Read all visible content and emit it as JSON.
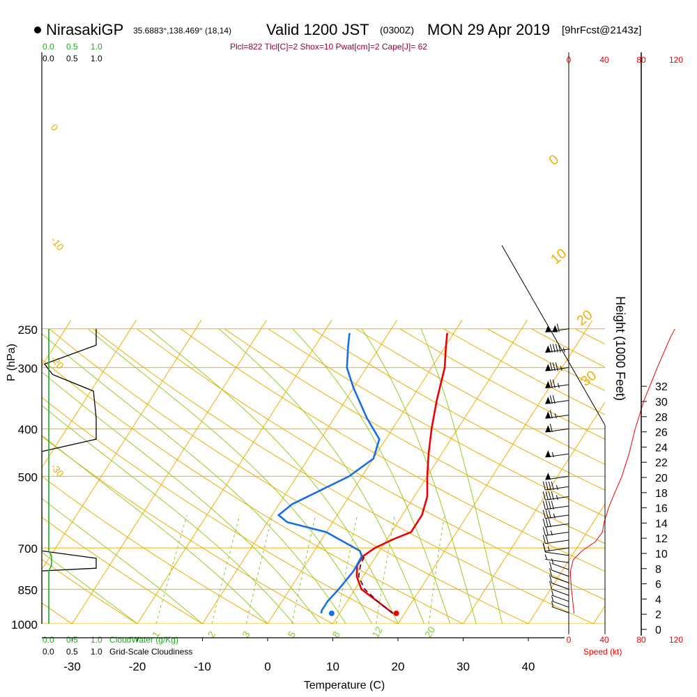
{
  "header": {
    "station": "NirasakiGP",
    "coords": "35.6883°,138.469° (18,14)",
    "valid_prefix": "Valid 1200 JST",
    "valid_utc": "(0300Z)",
    "valid_date": "MON 29 Apr 2019",
    "forecast": "[9hrFcst@2143z]"
  },
  "indices": "Plcl=822 Tlcl[C]=2 Shox=10 Pwat[cm]=2 Cape[J]= 62",
  "left_panel": {
    "cloudwater_ticks": [
      "0.0",
      "0.5",
      "1.0"
    ],
    "cloudiness_ticks": [
      "0.0",
      "0.5",
      "1.0"
    ],
    "cloudwater_label": "CloudWater (g/Kg)",
    "cloudiness_label": "Grid-Scale Cloudiness"
  },
  "speed_axis": {
    "ticks": [
      "0",
      "40",
      "80",
      "120"
    ],
    "label": "Speed (kt)"
  },
  "colors": {
    "isotherm": "#f0b000",
    "dry_adiabat": "#e8b000",
    "moist_adiabat": "#99cc22",
    "mixing_ratio": "#88cc33",
    "temperature": "#ee0000",
    "dewpoint": "#1a6fe0",
    "parcel": "#660033",
    "indices": "#990033",
    "cloudwater": "#22aa22",
    "speed": "#ee0000"
  },
  "chart_data": {
    "type": "line",
    "chart_kind": "skew-T log-p sounding",
    "xlabel": "Temperature (C)",
    "ylabel": "P (hPa)",
    "y2label": "Height (1000 Feet)",
    "x_ticks": [
      -30,
      -20,
      -10,
      0,
      10,
      20,
      30,
      40
    ],
    "p_levels": [
      250,
      300,
      400,
      500,
      700,
      850,
      1000
    ],
    "height_ticks": [
      0,
      2,
      4,
      6,
      8,
      10,
      12,
      14,
      16,
      18,
      20,
      22,
      24,
      26,
      28,
      30,
      32
    ],
    "isotherm_labels": [
      0,
      10,
      20,
      30
    ],
    "dry_adiabat_labels": [
      0,
      -10,
      -20,
      -30
    ],
    "mixing_ratio_labels": [
      1,
      2,
      3,
      5,
      8,
      12,
      20
    ],
    "series": [
      {
        "name": "Temperature",
        "points": [
          [
            18.2,
            952
          ],
          [
            15,
            905
          ],
          [
            11,
            850
          ],
          [
            9,
            800
          ],
          [
            8,
            760
          ],
          [
            8,
            728
          ],
          [
            9,
            700
          ],
          [
            11,
            672
          ],
          [
            13,
            650
          ],
          [
            13,
            600
          ],
          [
            12,
            550
          ],
          [
            10,
            500
          ],
          [
            8,
            450
          ],
          [
            6,
            400
          ],
          [
            4,
            350
          ],
          [
            2,
            300
          ],
          [
            0,
            270
          ],
          [
            -1,
            255
          ]
        ]
      },
      {
        "name": "Dewpoint",
        "points": [
          [
            7.2,
            952
          ],
          [
            7,
            940
          ],
          [
            7,
            900
          ],
          [
            7.5,
            850
          ],
          [
            8,
            780
          ],
          [
            7.8,
            728
          ],
          [
            7,
            710
          ],
          [
            0,
            650
          ],
          [
            -7,
            620
          ],
          [
            -9,
            600
          ],
          [
            -8,
            570
          ],
          [
            -2,
            500
          ],
          [
            0,
            460
          ],
          [
            -1,
            420
          ],
          [
            -5,
            380
          ],
          [
            -10,
            330
          ],
          [
            -13,
            300
          ],
          [
            -15,
            270
          ],
          [
            -16,
            255
          ]
        ]
      },
      {
        "name": "Parcel",
        "points": [
          [
            18.2,
            952
          ],
          [
            15,
            905
          ],
          [
            11.5,
            850
          ],
          [
            9.3,
            800
          ],
          [
            8.5,
            760
          ],
          [
            8.2,
            728
          ]
        ]
      }
    ],
    "surface": {
      "temperature": 18.5,
      "dewpoint": 8.8,
      "pressure": 952
    },
    "cloudwater": [
      [
        0,
        1000
      ],
      [
        0,
        780
      ],
      [
        0.05,
        760
      ],
      [
        0.05,
        728
      ],
      [
        0,
        710
      ],
      [
        0,
        250
      ]
    ],
    "cloudiness": [
      [
        0,
        1000
      ],
      [
        0,
        780
      ],
      [
        1.0,
        770
      ],
      [
        1.0,
        735
      ],
      [
        0,
        710
      ],
      [
        0,
        445
      ],
      [
        1.0,
        420
      ],
      [
        1.0,
        380
      ],
      [
        0.95,
        335
      ],
      [
        0.2,
        310
      ],
      [
        0.1,
        300
      ],
      [
        0.05,
        295
      ],
      [
        1.0,
        270
      ],
      [
        1.0,
        250
      ]
    ],
    "wind_speed_profile": [
      [
        6,
        952
      ],
      [
        5,
        920
      ],
      [
        4,
        880
      ],
      [
        3,
        850
      ],
      [
        2,
        800
      ],
      [
        2,
        780
      ],
      [
        5,
        740
      ],
      [
        15,
        710
      ],
      [
        30,
        680
      ],
      [
        38,
        650
      ],
      [
        40,
        620
      ],
      [
        45,
        580
      ],
      [
        52,
        540
      ],
      [
        60,
        500
      ],
      [
        68,
        450
      ],
      [
        75,
        400
      ],
      [
        85,
        350
      ],
      [
        100,
        300
      ],
      [
        115,
        260
      ],
      [
        120,
        250
      ]
    ],
    "wind_barbs": [
      {
        "p": 950,
        "kt": 5
      },
      {
        "p": 925,
        "kt": 5
      },
      {
        "p": 900,
        "kt": 5
      },
      {
        "p": 875,
        "kt": 10
      },
      {
        "p": 850,
        "kt": 10
      },
      {
        "p": 825,
        "kt": 10
      },
      {
        "p": 800,
        "kt": 10
      },
      {
        "p": 775,
        "kt": 5
      },
      {
        "p": 750,
        "kt": 5
      },
      {
        "p": 725,
        "kt": 10
      },
      {
        "p": 700,
        "kt": 15
      },
      {
        "p": 675,
        "kt": 20
      },
      {
        "p": 650,
        "kt": 25
      },
      {
        "p": 625,
        "kt": 30
      },
      {
        "p": 600,
        "kt": 35
      },
      {
        "p": 575,
        "kt": 40
      },
      {
        "p": 550,
        "kt": 45
      },
      {
        "p": 525,
        "kt": 45
      },
      {
        "p": 500,
        "kt": 50
      },
      {
        "p": 450,
        "kt": 55
      },
      {
        "p": 400,
        "kt": 60
      },
      {
        "p": 375,
        "kt": 65
      },
      {
        "p": 350,
        "kt": 70
      },
      {
        "p": 325,
        "kt": 75
      },
      {
        "p": 300,
        "kt": 85
      },
      {
        "p": 275,
        "kt": 95
      },
      {
        "p": 250,
        "kt": 110
      }
    ]
  }
}
